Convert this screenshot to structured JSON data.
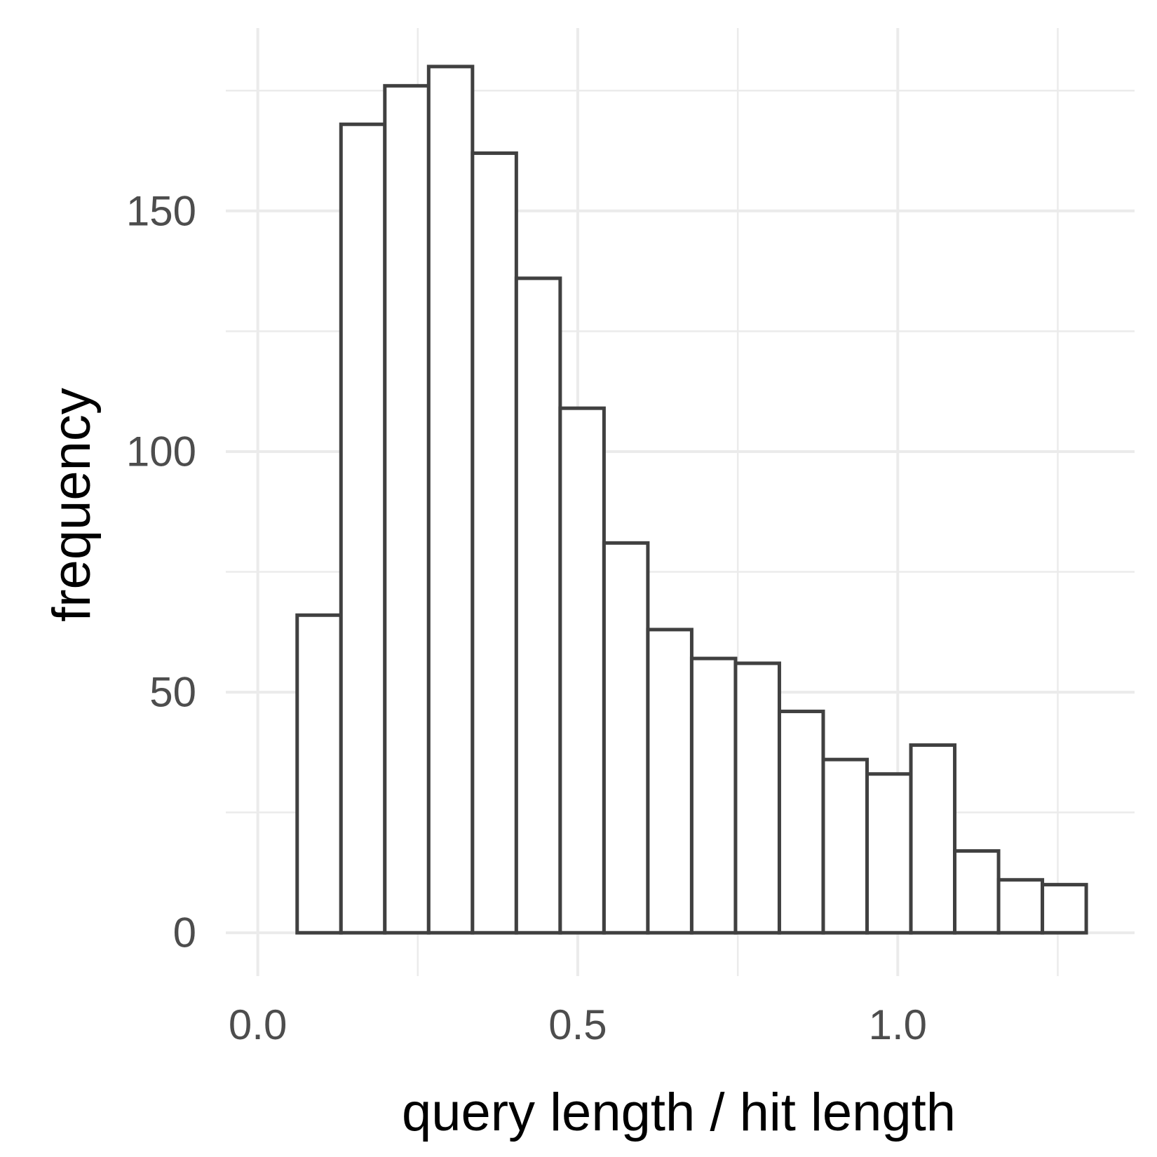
{
  "chart_data": {
    "type": "histogram",
    "xlabel": "query length / hit length",
    "ylabel": "frequency",
    "xlim": [
      -0.05,
      1.37
    ],
    "ylim": [
      -9,
      188
    ],
    "x_ticks": [
      0.0,
      0.5,
      1.0
    ],
    "x_tick_labels": [
      "0.0",
      "0.5",
      "1.0"
    ],
    "x_minor_ticks": [
      0.25,
      0.75,
      1.25
    ],
    "y_ticks": [
      0,
      50,
      100,
      150
    ],
    "y_tick_labels": [
      "0",
      "50",
      "100",
      "150"
    ],
    "y_minor_ticks": [
      25,
      75,
      125,
      175
    ],
    "grid": true,
    "bin_width": 0.0685,
    "bins": [
      {
        "x0": 0.0615,
        "x1": 0.13,
        "count": 66
      },
      {
        "x0": 0.13,
        "x1": 0.1985,
        "count": 168
      },
      {
        "x0": 0.1985,
        "x1": 0.267,
        "count": 176
      },
      {
        "x0": 0.267,
        "x1": 0.3355,
        "count": 180
      },
      {
        "x0": 0.3355,
        "x1": 0.404,
        "count": 162
      },
      {
        "x0": 0.404,
        "x1": 0.4725,
        "count": 136
      },
      {
        "x0": 0.4725,
        "x1": 0.541,
        "count": 109
      },
      {
        "x0": 0.541,
        "x1": 0.6095,
        "count": 81
      },
      {
        "x0": 0.6095,
        "x1": 0.678,
        "count": 63
      },
      {
        "x0": 0.678,
        "x1": 0.7465,
        "count": 57
      },
      {
        "x0": 0.7465,
        "x1": 0.815,
        "count": 56
      },
      {
        "x0": 0.815,
        "x1": 0.8835,
        "count": 46
      },
      {
        "x0": 0.8835,
        "x1": 0.952,
        "count": 36
      },
      {
        "x0": 0.952,
        "x1": 1.0205,
        "count": 33
      },
      {
        "x0": 1.0205,
        "x1": 1.089,
        "count": 39
      },
      {
        "x0": 1.089,
        "x1": 1.1575,
        "count": 17
      },
      {
        "x0": 1.1575,
        "x1": 1.226,
        "count": 11
      },
      {
        "x0": 1.226,
        "x1": 1.2945,
        "count": 10
      }
    ]
  }
}
